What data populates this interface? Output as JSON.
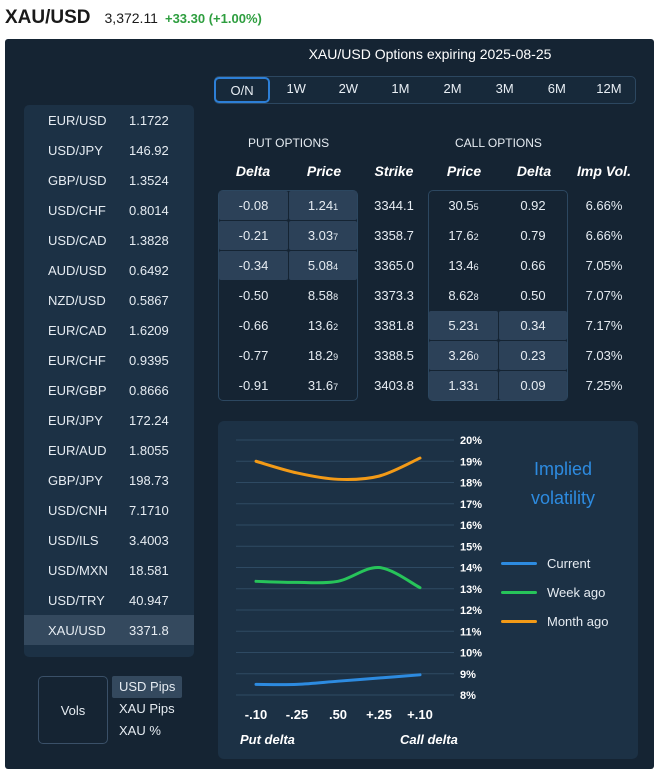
{
  "header": {
    "symbol": "XAU/USD",
    "last": "3,372.11",
    "change": "+33.30 (+1.00%)"
  },
  "title": "XAU/USD Options expiring 2025-08-25",
  "tenors": [
    "O/N",
    "1W",
    "2W",
    "1M",
    "2M",
    "3M",
    "6M",
    "12M"
  ],
  "currencies": [
    {
      "pair": "EUR/USD",
      "rate": "1.1722"
    },
    {
      "pair": "USD/JPY",
      "rate": "146.92"
    },
    {
      "pair": "GBP/USD",
      "rate": "1.3524"
    },
    {
      "pair": "USD/CHF",
      "rate": "0.8014"
    },
    {
      "pair": "USD/CAD",
      "rate": "1.3828"
    },
    {
      "pair": "AUD/USD",
      "rate": "0.6492"
    },
    {
      "pair": "NZD/USD",
      "rate": "0.5867"
    },
    {
      "pair": "EUR/CAD",
      "rate": "1.6209"
    },
    {
      "pair": "EUR/CHF",
      "rate": "0.9395"
    },
    {
      "pair": "EUR/GBP",
      "rate": "0.8666"
    },
    {
      "pair": "EUR/JPY",
      "rate": "172.24"
    },
    {
      "pair": "EUR/AUD",
      "rate": "1.8055"
    },
    {
      "pair": "GBP/JPY",
      "rate": "198.73"
    },
    {
      "pair": "USD/CNH",
      "rate": "7.1710"
    },
    {
      "pair": "USD/ILS",
      "rate": "3.4003"
    },
    {
      "pair": "USD/MXN",
      "rate": "18.581"
    },
    {
      "pair": "USD/TRY",
      "rate": "40.947"
    },
    {
      "pair": "XAU/USD",
      "rate": "3371.8"
    }
  ],
  "units": {
    "label": "Vols",
    "options": [
      "USD Pips",
      "XAU Pips",
      "XAU %"
    ]
  },
  "table": {
    "put_group": "PUT OPTIONS",
    "call_group": "CALL OPTIONS",
    "headers": {
      "put_delta": "Delta",
      "put_price": "Price",
      "strike": "Strike",
      "call_price": "Price",
      "call_delta": "Delta",
      "vol": "Imp Vol."
    },
    "rows": [
      {
        "pd": "-0.08",
        "pp": "1.24",
        "pps": "1",
        "strike": "3344.1",
        "cp": "30.5",
        "cps": "5",
        "cd": "0.92",
        "vol": "6.66%"
      },
      {
        "pd": "-0.21",
        "pp": "3.03",
        "pps": "7",
        "strike": "3358.7",
        "cp": "17.6",
        "cps": "2",
        "cd": "0.79",
        "vol": "6.66%"
      },
      {
        "pd": "-0.34",
        "pp": "5.08",
        "pps": "4",
        "strike": "3365.0",
        "cp": "13.4",
        "cps": "6",
        "cd": "0.66",
        "vol": "7.05%"
      },
      {
        "pd": "-0.50",
        "pp": "8.58",
        "pps": "8",
        "strike": "3373.3",
        "cp": "8.62",
        "cps": "8",
        "cd": "0.50",
        "vol": "7.07%"
      },
      {
        "pd": "-0.66",
        "pp": "13.6",
        "pps": "2",
        "strike": "3381.8",
        "cp": "5.23",
        "cps": "1",
        "cd": "0.34",
        "vol": "7.17%"
      },
      {
        "pd": "-0.77",
        "pp": "18.2",
        "pps": "9",
        "strike": "3388.5",
        "cp": "3.26",
        "cps": "0",
        "cd": "0.23",
        "vol": "7.03%"
      },
      {
        "pd": "-0.91",
        "pp": "31.6",
        "pps": "7",
        "strike": "3403.8",
        "cp": "1.33",
        "cps": "1",
        "cd": "0.09",
        "vol": "7.25%"
      }
    ]
  },
  "colors": {
    "current": "#2d8be0",
    "week": "#27c45a",
    "month": "#f29a17",
    "accent": "#2d7fd6",
    "panel": "#152433"
  },
  "chart_data": {
    "type": "line",
    "title": "Implied volatility",
    "xlabel_left": "Put delta",
    "xlabel_right": "Call delta",
    "x_ticks": [
      "-.10",
      "-.25",
      ".50",
      "+.25",
      "+.10"
    ],
    "y_ticks": [
      "20%",
      "19%",
      "18%",
      "17%",
      "16%",
      "15%",
      "14%",
      "13%",
      "12%",
      "11%",
      "10%",
      "9%",
      "8%"
    ],
    "ylim": [
      8,
      20
    ],
    "series": [
      {
        "name": "Current",
        "values": [
          8.5,
          8.5,
          8.65,
          8.8,
          8.95
        ]
      },
      {
        "name": "Week ago",
        "values": [
          13.35,
          13.3,
          13.35,
          14.0,
          13.05
        ]
      },
      {
        "name": "Month ago",
        "values": [
          19.0,
          18.45,
          18.15,
          18.3,
          19.15
        ]
      }
    ]
  }
}
